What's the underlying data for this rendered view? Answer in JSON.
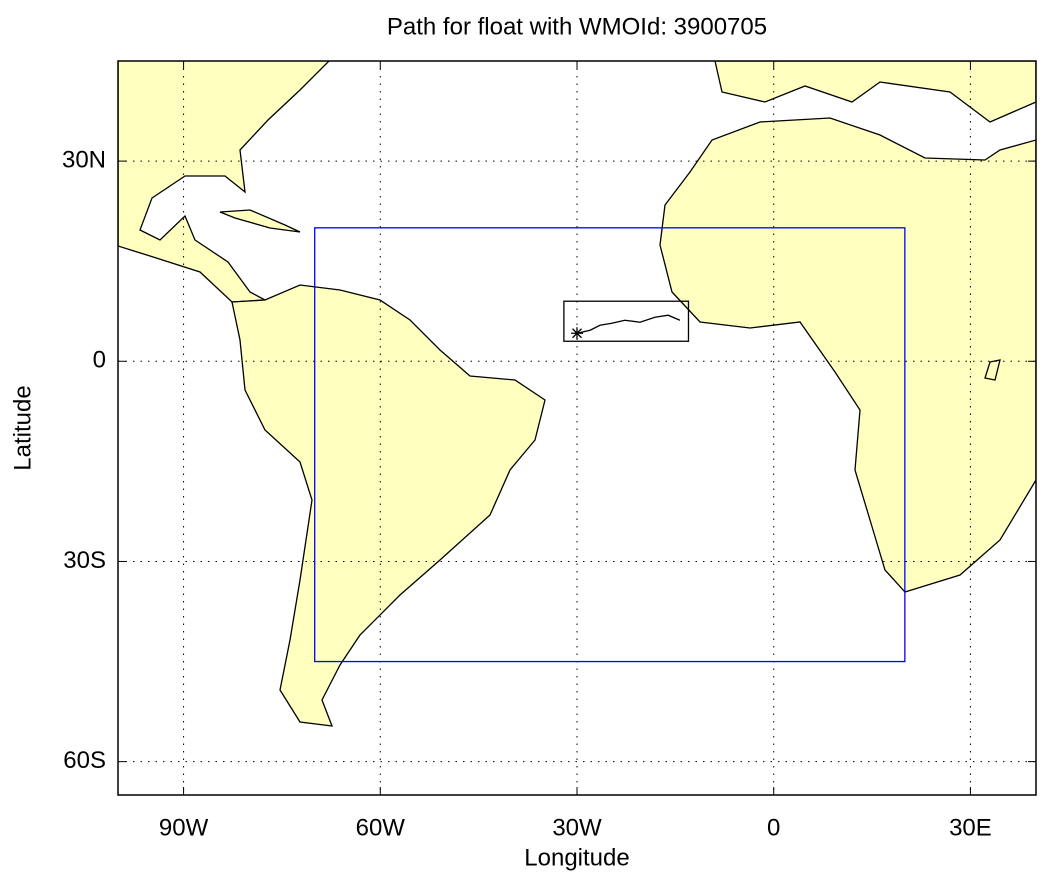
{
  "chart_data": {
    "type": "line",
    "title": "Path for float with WMOId: 3900705",
    "x_label": "Longitude",
    "y_label": "Latitude",
    "xlim": [
      -100,
      40
    ],
    "ylim": [
      -65,
      45
    ],
    "xticks": [
      {
        "value": -90,
        "label": "90W"
      },
      {
        "value": -60,
        "label": "60W"
      },
      {
        "value": -30,
        "label": "30W"
      },
      0,
      {
        "value": 30,
        "label": "30E"
      }
    ],
    "yticks": [
      {
        "value": 30,
        "label": "30N"
      },
      0,
      {
        "value": -30,
        "label": "30S"
      },
      {
        "value": -60,
        "label": "60S"
      }
    ],
    "grid": true,
    "x": [
      -30.0,
      -28.0,
      -26.5,
      -24.7,
      -22.7,
      -20.4,
      -18.1,
      -16.1,
      -14.3
    ],
    "series": [
      {
        "color": "#000000",
        "values": [
          4.2,
          4.65,
          5.4,
          5.7,
          6.15,
          5.85,
          6.6,
          6.9,
          6.15
        ]
      }
    ],
    "boxes": [
      {
        "color": "#0000ff",
        "xlim": [
          -70,
          20
        ],
        "ylim": [
          -45,
          20
        ]
      },
      {
        "color": "#000000",
        "xlim": [
          -32,
          -13
        ],
        "ylim": [
          3,
          9
        ]
      }
    ]
  }
}
